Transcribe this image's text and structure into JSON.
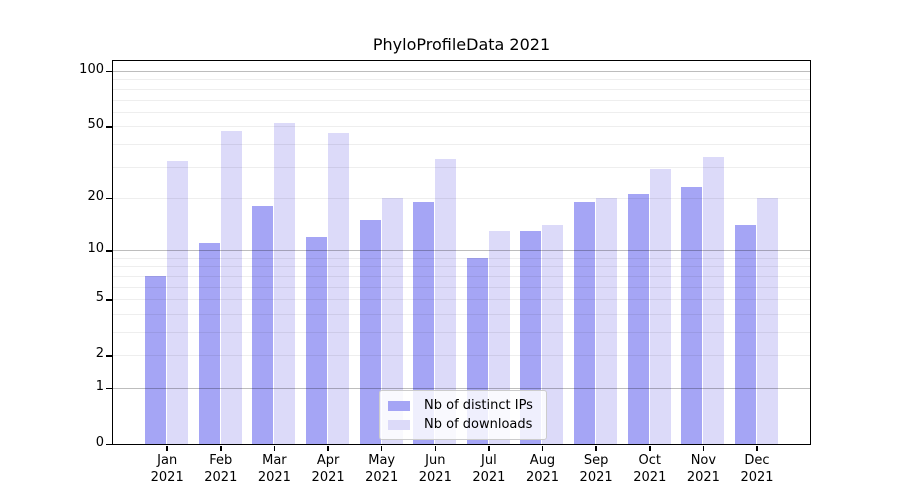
{
  "chart_data": {
    "type": "bar",
    "title": "PhyloProfileData 2021",
    "categories": [
      "Jan",
      "Feb",
      "Mar",
      "Apr",
      "May",
      "Jun",
      "Jul",
      "Aug",
      "Sep",
      "Oct",
      "Nov",
      "Dec"
    ],
    "category_year": "2021",
    "series": [
      {
        "name": "Nb of distinct IPs",
        "color": "#a5a5f5",
        "values": [
          7,
          11,
          18,
          12,
          15,
          19,
          9,
          13,
          19,
          21,
          23,
          14
        ]
      },
      {
        "name": "Nb of downloads",
        "color": "#dcdaf9",
        "values": [
          32,
          47,
          52,
          46,
          20,
          33,
          13,
          14,
          20,
          29,
          34,
          20
        ]
      }
    ],
    "yscale": "log1p",
    "ylim": [
      0,
      113
    ],
    "yticks": [
      0,
      1,
      2,
      5,
      10,
      20,
      50,
      100
    ],
    "major_gridlines": [
      1,
      10,
      100
    ],
    "minor_gridlines": [
      2,
      3,
      4,
      5,
      6,
      7,
      8,
      9,
      20,
      30,
      40,
      50,
      60,
      70,
      80,
      90
    ],
    "grid": "on",
    "legend_position": "lower-center",
    "xlabel": "",
    "ylabel": ""
  }
}
